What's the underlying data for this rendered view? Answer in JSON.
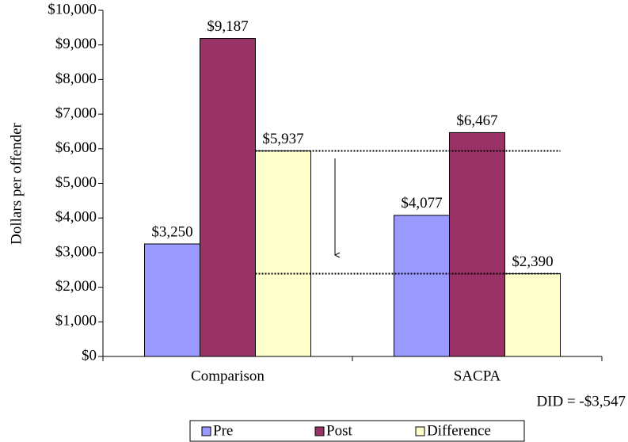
{
  "chart_data": {
    "type": "bar",
    "y_axis_label": "Dollars per offender",
    "categories": [
      "Comparison",
      "SACPA"
    ],
    "series": [
      {
        "name": "Pre",
        "color": "#9999ff",
        "values": [
          3250,
          4077
        ],
        "value_labels": [
          "$3,250",
          "$4,077"
        ]
      },
      {
        "name": "Post",
        "color": "#993366",
        "values": [
          9187,
          6467
        ],
        "value_labels": [
          "$9,187",
          "$6,467"
        ]
      },
      {
        "name": "Difference",
        "color": "#ffffcc",
        "values": [
          5937,
          2390
        ],
        "value_labels": [
          "$5,937",
          "$2,390"
        ]
      }
    ],
    "ylim": [
      0,
      10000
    ],
    "yticks": [
      {
        "value": 0,
        "label": "$0"
      },
      {
        "value": 1000,
        "label": "$1,000"
      },
      {
        "value": 2000,
        "label": "$2,000"
      },
      {
        "value": 3000,
        "label": "$3,000"
      },
      {
        "value": 4000,
        "label": "$4,000"
      },
      {
        "value": 5000,
        "label": "$5,000"
      },
      {
        "value": 6000,
        "label": "$6,000"
      },
      {
        "value": 7000,
        "label": "$7,000"
      },
      {
        "value": 8000,
        "label": "$8,000"
      },
      {
        "value": 9000,
        "label": "$9,000"
      },
      {
        "value": 10000,
        "label": "$10,000"
      }
    ],
    "annotation": "DID = -$3,547",
    "legend": "bottom"
  }
}
